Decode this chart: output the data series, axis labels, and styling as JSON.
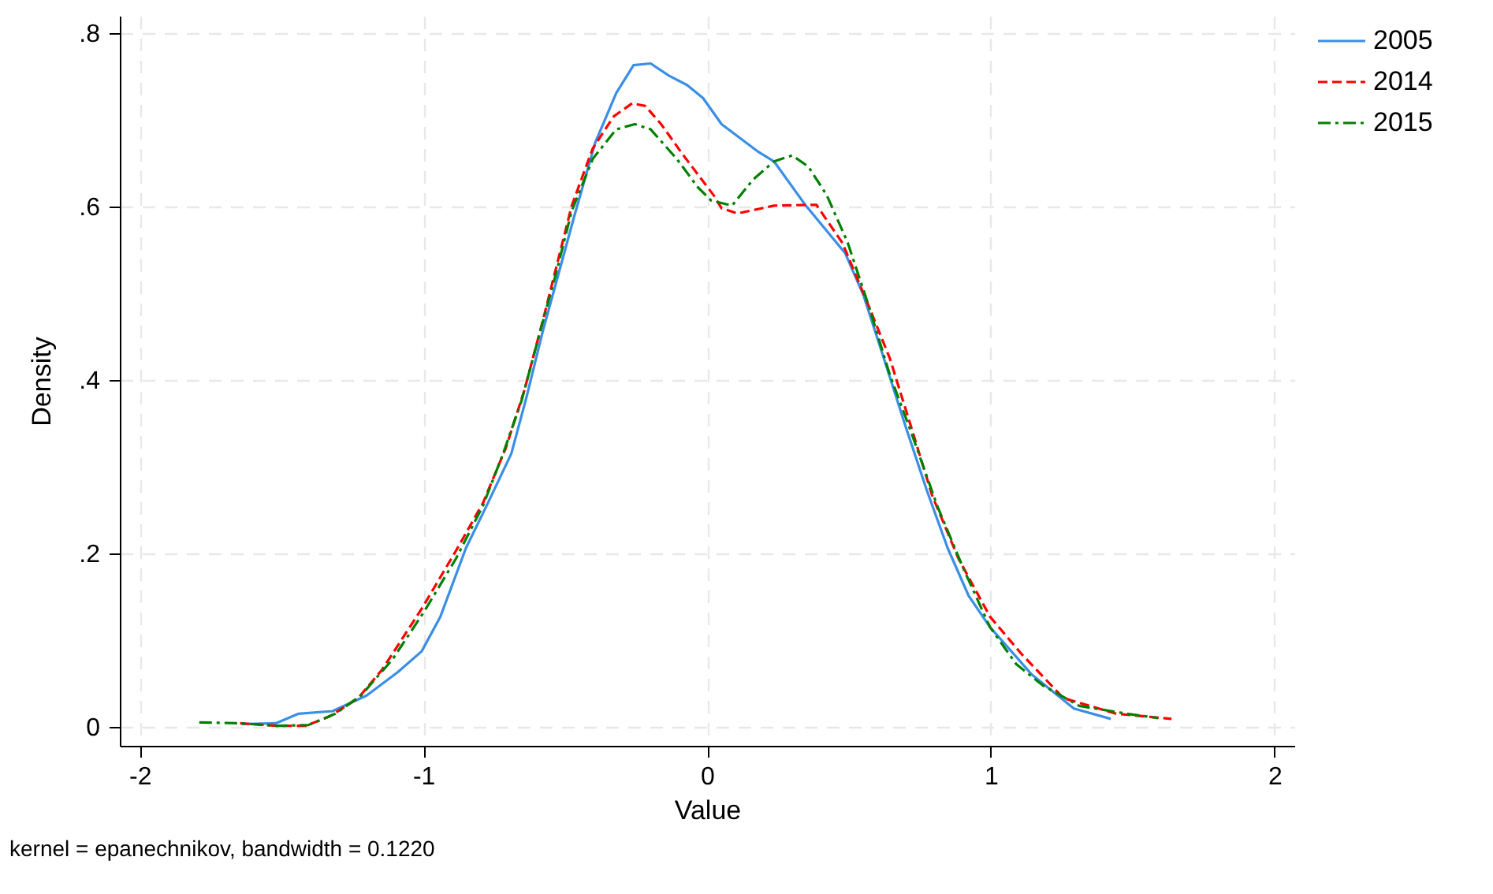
{
  "chart_data": {
    "type": "line",
    "xlabel": "Value",
    "ylabel": "Density",
    "annotations": [
      "kernel = epanechnikov, bandwidth = 0.1220"
    ],
    "xlim": [
      -2.07,
      2.07
    ],
    "xticks": [
      -2,
      -1,
      0,
      1,
      2
    ],
    "ylim": [
      -0.022,
      0.82
    ],
    "yticks": [
      0,
      {
        "value": 0.2,
        "label": ".2"
      },
      {
        "value": 0.4,
        "label": ".4"
      },
      {
        "value": 0.6,
        "label": ".6"
      },
      {
        "value": 0.8,
        "label": ".8"
      }
    ],
    "grid": true,
    "legend": "right",
    "marker": "none",
    "series": [
      {
        "name": "2005",
        "color": "#3a8ee6",
        "line_style": "solid",
        "x": [
          -1.64,
          -1.52,
          -1.44,
          -1.32,
          -1.2,
          -1.09,
          -1.006,
          -0.94,
          -0.85,
          -0.774,
          -0.69,
          -0.635,
          -0.58,
          -0.524,
          -0.468,
          -0.394,
          -0.32,
          -0.259,
          -0.199,
          -0.135,
          -0.07,
          -0.014,
          0.051,
          0.181,
          0.236,
          0.348,
          0.487,
          0.552,
          0.617,
          0.7,
          0.774,
          0.848,
          0.922,
          0.997,
          1.145,
          1.293,
          1.423
        ],
        "values": [
          0.003,
          0.004,
          0.015,
          0.018,
          0.036,
          0.063,
          0.087,
          0.127,
          0.206,
          0.257,
          0.315,
          0.382,
          0.455,
          0.522,
          0.589,
          0.674,
          0.731,
          0.763,
          0.765,
          0.751,
          0.74,
          0.725,
          0.695,
          0.663,
          0.652,
          0.601,
          0.546,
          0.497,
          0.431,
          0.346,
          0.273,
          0.206,
          0.151,
          0.115,
          0.06,
          0.021,
          0.009
        ]
      },
      {
        "name": "2014",
        "color": "#ff0000",
        "line_style": "dashed",
        "x": [
          -1.646,
          -1.516,
          -1.414,
          -1.33,
          -1.23,
          -1.145,
          -1.006,
          -0.885,
          -0.79,
          -0.71,
          -0.644,
          -0.58,
          -0.533,
          -0.477,
          -0.403,
          -0.329,
          -0.264,
          -0.218,
          -0.162,
          -0.088,
          0.023,
          0.051,
          0.107,
          0.236,
          0.385,
          0.477,
          0.57,
          0.644,
          0.719,
          0.793,
          0.886,
          0.997,
          1.108,
          1.256,
          1.442,
          1.637
        ],
        "values": [
          0.004,
          0.001,
          0.001,
          0.012,
          0.033,
          0.066,
          0.136,
          0.203,
          0.258,
          0.321,
          0.388,
          0.467,
          0.528,
          0.601,
          0.667,
          0.704,
          0.719,
          0.716,
          0.695,
          0.661,
          0.613,
          0.598,
          0.592,
          0.601,
          0.602,
          0.558,
          0.485,
          0.425,
          0.346,
          0.267,
          0.194,
          0.127,
          0.084,
          0.033,
          0.015,
          0.009
        ]
      },
      {
        "name": "2015",
        "color": "#008000",
        "line_style": "dashed",
        "x": [
          -1.79,
          -1.646,
          -1.516,
          -1.405,
          -1.31,
          -1.22,
          -1.108,
          -0.997,
          -0.885,
          -0.79,
          -0.719,
          -0.654,
          -0.589,
          -0.533,
          -0.477,
          -0.403,
          -0.32,
          -0.255,
          -0.199,
          -0.107,
          -0.032,
          0.014,
          0.088,
          0.162,
          0.236,
          0.3,
          0.357,
          0.422,
          0.496,
          0.57,
          0.644,
          0.719,
          0.811,
          0.904,
          0.997,
          1.09,
          1.182,
          1.312,
          1.479,
          1.59
        ],
        "values": [
          0.005,
          0.004,
          0.001,
          0.002,
          0.015,
          0.036,
          0.078,
          0.133,
          0.194,
          0.255,
          0.315,
          0.376,
          0.455,
          0.522,
          0.595,
          0.655,
          0.689,
          0.695,
          0.689,
          0.655,
          0.622,
          0.607,
          0.601,
          0.631,
          0.652,
          0.659,
          0.646,
          0.613,
          0.558,
          0.485,
          0.406,
          0.34,
          0.255,
          0.182,
          0.115,
          0.072,
          0.048,
          0.024,
          0.015,
          0.01
        ]
      }
    ]
  }
}
